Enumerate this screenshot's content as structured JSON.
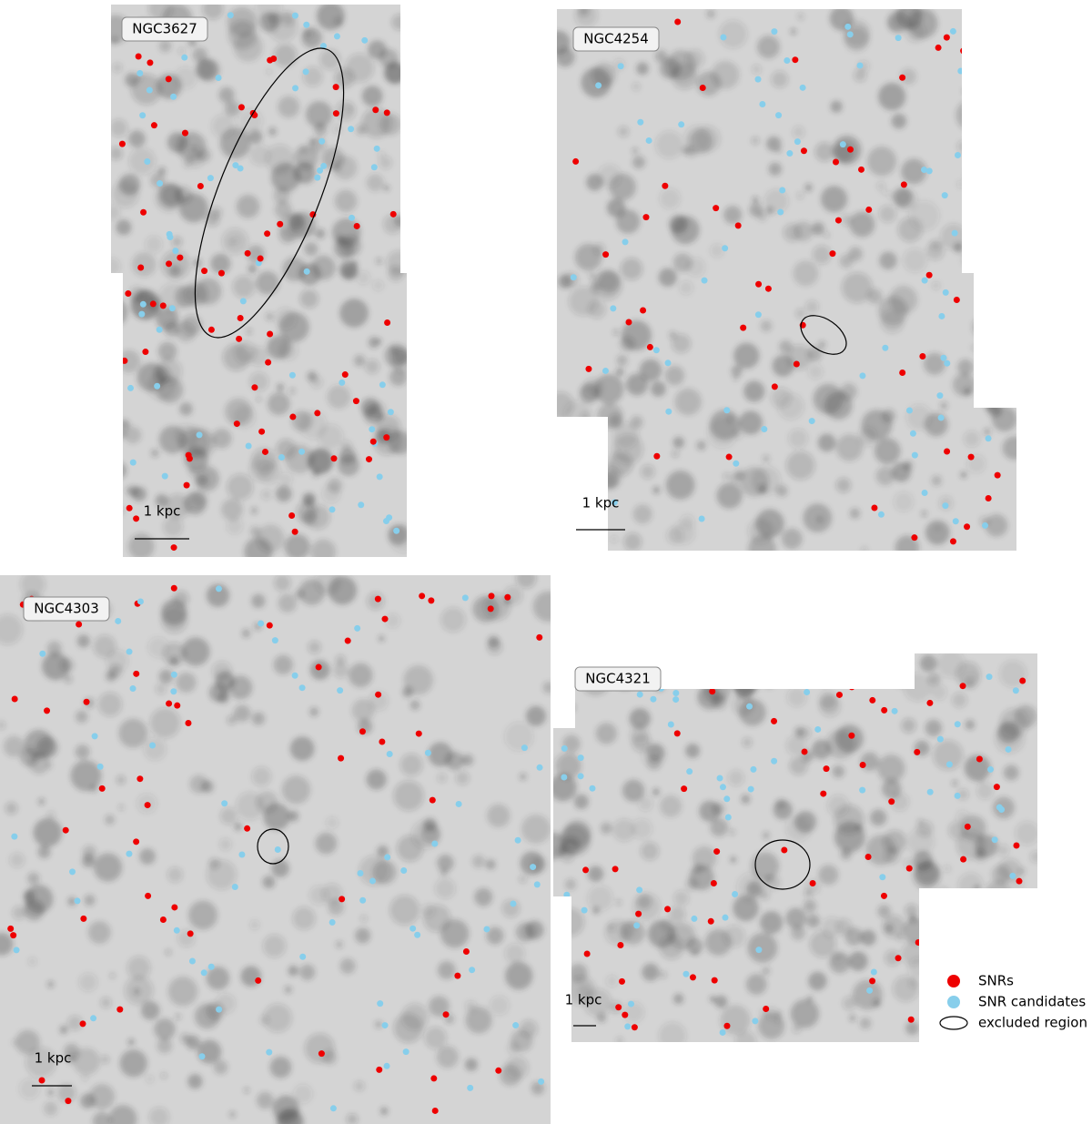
{
  "panels": [
    {
      "name": "NGC3627",
      "scale_label": "1 kpc"
    },
    {
      "name": "NGC4254",
      "scale_label": "1 kpc"
    },
    {
      "name": "NGC4303",
      "scale_label": "1 kpc"
    },
    {
      "name": "NGC4321",
      "scale_label": "1 kpc"
    }
  ],
  "legend": [
    {
      "label": "SNRs"
    },
    {
      "label": "SNR candidates"
    },
    {
      "label": "excluded region"
    }
  ]
}
